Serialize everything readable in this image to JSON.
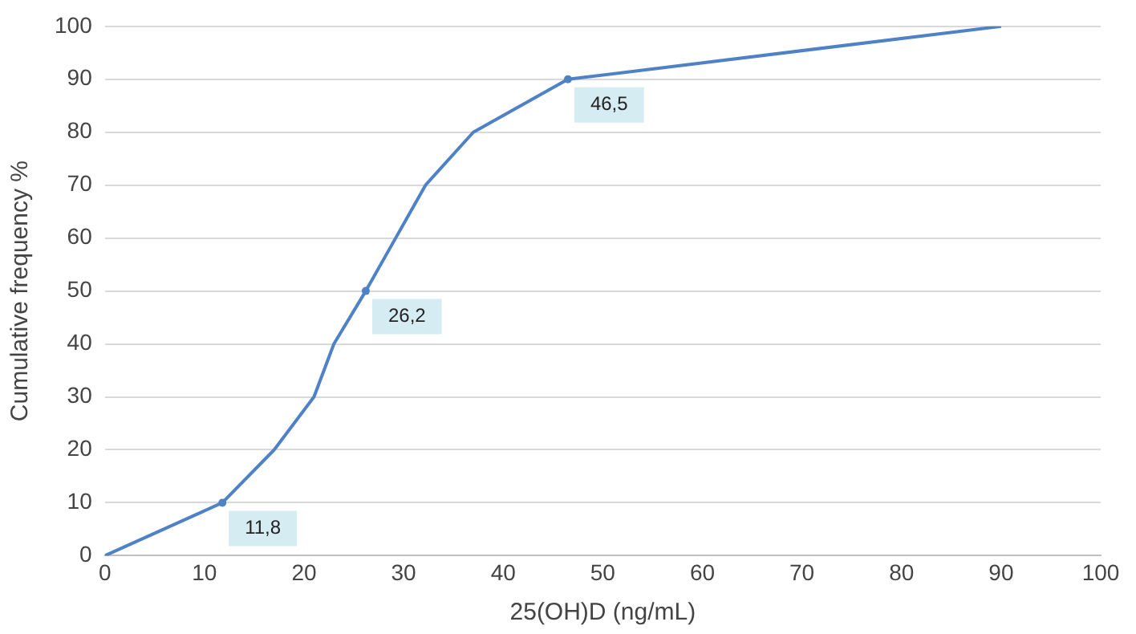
{
  "chart_data": {
    "type": "line",
    "xlabel": "25(OH)D (ng/mL)",
    "ylabel": "Cumulative frequency %",
    "x": [
      0,
      11.8,
      17,
      21,
      23,
      26.2,
      29.2,
      32.2,
      37,
      46.5,
      90
    ],
    "series": [
      {
        "color": "#4f81c7",
        "values": [
          0,
          10,
          20,
          30,
          40,
          50,
          60,
          70,
          80,
          90,
          100
        ]
      }
    ],
    "xlim": [
      0,
      100
    ],
    "xticks": [
      0,
      10,
      20,
      30,
      40,
      50,
      60,
      70,
      80,
      90,
      100
    ],
    "ylim": [
      0,
      100
    ],
    "yticks": [
      0,
      10,
      20,
      30,
      40,
      50,
      60,
      70,
      80,
      90,
      100
    ],
    "grid": "y",
    "marker": "none",
    "legend": false,
    "annotations": [
      {
        "text": "11,8",
        "x": 11.8,
        "y": 10
      },
      {
        "text": "26,2",
        "x": 26.2,
        "y": 50
      },
      {
        "text": "46,5",
        "x": 46.5,
        "y": 90
      }
    ]
  }
}
